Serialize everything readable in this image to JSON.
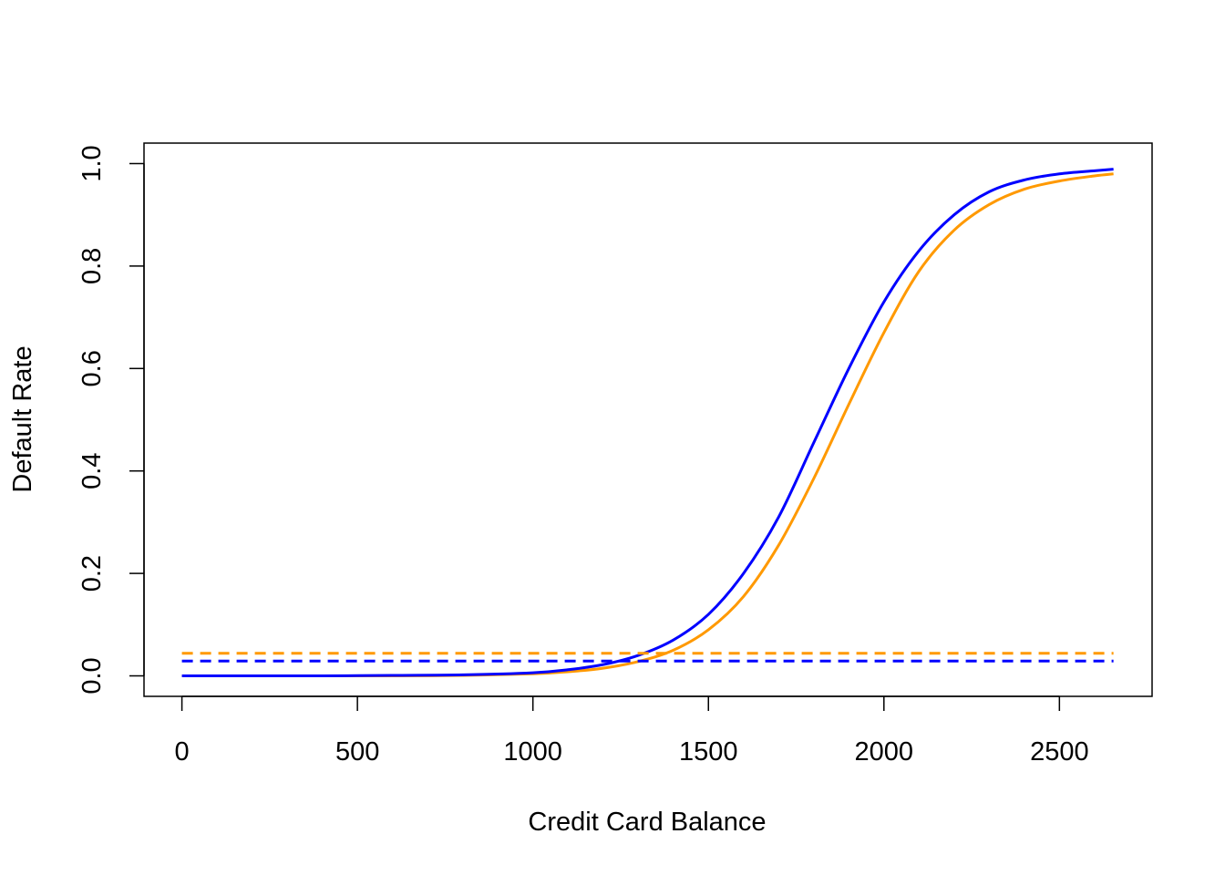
{
  "chart_data": {
    "type": "line",
    "xlabel": "Credit Card Balance",
    "ylabel": "Default Rate",
    "xlim": [
      -108,
      2764
    ],
    "ylim": [
      -0.04,
      1.04
    ],
    "x_ticks": [
      0,
      500,
      1000,
      1500,
      2000,
      2500
    ],
    "x_tick_labels": [
      "0",
      "500",
      "1000",
      "1500",
      "2000",
      "2500"
    ],
    "y_ticks": [
      0.0,
      0.2,
      0.4,
      0.6,
      0.8,
      1.0
    ],
    "y_tick_labels": [
      "0.0",
      "0.2",
      "0.4",
      "0.6",
      "0.8",
      "1.0"
    ],
    "grid": false,
    "series": [
      {
        "color": "#FF9900",
        "style": "solid",
        "x": [
          0,
          200,
          400,
          600,
          800,
          1000,
          1100,
          1200,
          1300,
          1400,
          1500,
          1600,
          1700,
          1800,
          1900,
          2000,
          2100,
          2200,
          2300,
          2400,
          2500,
          2600,
          2654
        ],
        "y": [
          0.0,
          0.0,
          0.0,
          0.0,
          0.001,
          0.004,
          0.008,
          0.015,
          0.028,
          0.05,
          0.09,
          0.155,
          0.255,
          0.385,
          0.53,
          0.67,
          0.79,
          0.87,
          0.92,
          0.95,
          0.966,
          0.976,
          0.98
        ]
      },
      {
        "color": "#0000FF",
        "style": "solid",
        "x": [
          0,
          200,
          400,
          600,
          800,
          1000,
          1100,
          1200,
          1300,
          1400,
          1500,
          1600,
          1700,
          1800,
          1900,
          2000,
          2100,
          2200,
          2300,
          2400,
          2500,
          2600,
          2654
        ],
        "y": [
          0.0,
          0.0,
          0.0,
          0.001,
          0.002,
          0.006,
          0.012,
          0.022,
          0.04,
          0.07,
          0.12,
          0.2,
          0.31,
          0.455,
          0.6,
          0.73,
          0.83,
          0.9,
          0.945,
          0.968,
          0.98,
          0.986,
          0.989
        ]
      },
      {
        "color": "#FF9900",
        "style": "dashed",
        "x": [
          0,
          2654
        ],
        "y": [
          0.044,
          0.044
        ]
      },
      {
        "color": "#0000FF",
        "style": "dashed",
        "x": [
          0,
          2654
        ],
        "y": [
          0.029,
          0.029
        ]
      }
    ]
  }
}
